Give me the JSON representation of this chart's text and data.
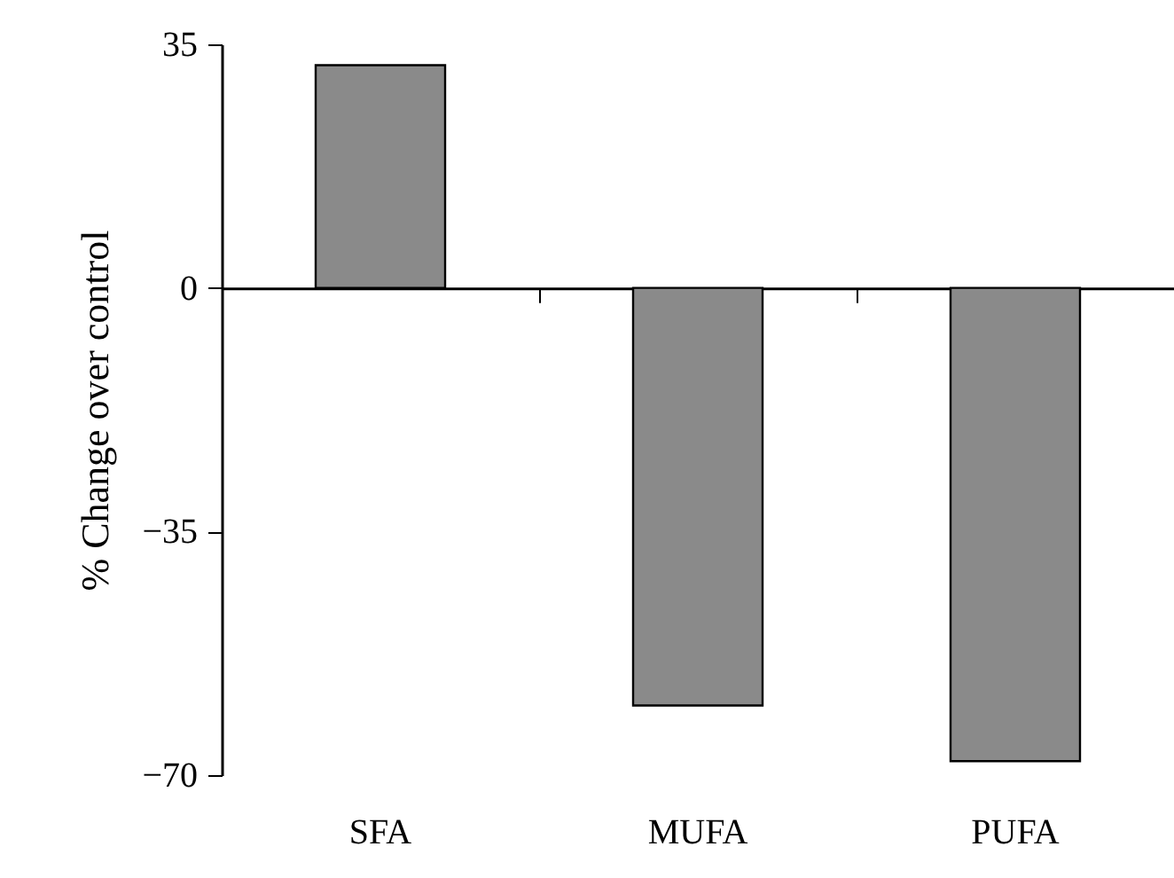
{
  "chart_data": {
    "type": "bar",
    "ylabel": "% Change over control",
    "categories": [
      "SFA",
      "MUFA",
      "PUFA"
    ],
    "values": [
      32,
      -60,
      -68
    ],
    "color": "#8a8a8a",
    "ylim": [
      -70,
      35
    ],
    "yticks": [
      -70,
      -35,
      0,
      35
    ]
  }
}
